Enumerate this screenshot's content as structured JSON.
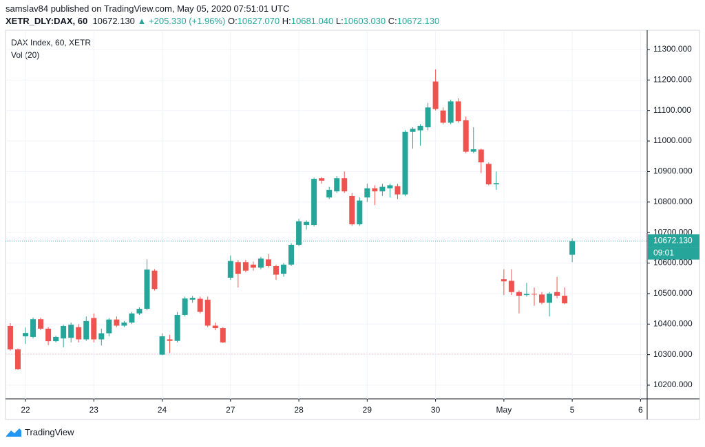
{
  "header": {
    "author_line": "samslav84 published on TradingView.com, May 05, 2020 07:51:01 UTC",
    "symbol": "XETR_DLY:DAX, 60",
    "last": "10672.130",
    "arrow": "▲",
    "change": "+205.330 (+1.96%)",
    "open_label": "O:",
    "open": "10627.070",
    "high_label": "H:",
    "high": "10681.040",
    "low_label": "L:",
    "low": "10603.030",
    "close_label": "C:",
    "close": "10672.130"
  },
  "chart_data": {
    "type": "candlestick",
    "legend": [
      "DAX Index, 60, XETR",
      "Vol (20)"
    ],
    "up_color": "#26a69a",
    "down_color": "#ef5350",
    "grid": true,
    "x": [
      -2,
      -1,
      0,
      1,
      2,
      3,
      4,
      5,
      6,
      7,
      8,
      9,
      10,
      11,
      12,
      13,
      14,
      15,
      16,
      17,
      18,
      19,
      20,
      21,
      22,
      23,
      24,
      25,
      26,
      27,
      28,
      29,
      30,
      31,
      32,
      33,
      34,
      35,
      36,
      37,
      38,
      39,
      40,
      41,
      42,
      43,
      44,
      45,
      46,
      47,
      48,
      49,
      50,
      51,
      52,
      53,
      54,
      55,
      56,
      57,
      58,
      59,
      60,
      61,
      62,
      63,
      64,
      65,
      66,
      67,
      68,
      69,
      70,
      71,
      72
    ],
    "open": [
      10394,
      10317,
      10360,
      10358,
      10416,
      10385,
      10344,
      10353,
      10355,
      10390,
      10350,
      10420,
      10350,
      10370,
      10415,
      10395,
      10405,
      10435,
      10450,
      10575,
      10300,
      10350,
      10345,
      10430,
      10480,
      10483,
      10480,
      10395,
      10387,
      10552,
      10603,
      10603,
      10595,
      10585,
      10612,
      10590,
      10565,
      10595,
      10660,
      10725,
      10725,
      10878,
      10815,
      10835,
      10878,
      10820,
      10727,
      10815,
      10845,
      10835,
      10845,
      10852,
      10825,
      11030,
      11035,
      11045,
      11195,
      11100,
      11060,
      11130,
      11068,
      10965,
      10972,
      10925,
      10858,
      10547,
      10542,
      10505,
      10495,
      10499,
      10497,
      10470,
      10505,
      10493,
      10627.07
    ],
    "high": [
      10403,
      10320,
      10389,
      10421,
      10421,
      10390,
      10362,
      10398,
      10405,
      10400,
      10425,
      10435,
      10385,
      10420,
      10425,
      10410,
      10440,
      10455,
      10612,
      10580,
      10370,
      10365,
      10440,
      10490,
      10492,
      10490,
      10490,
      10405,
      10390,
      10625,
      10610,
      10610,
      10605,
      10620,
      10630,
      10595,
      10600,
      10665,
      10745,
      10740,
      10880,
      10882,
      10850,
      10885,
      10900,
      10830,
      10815,
      10860,
      10855,
      10860,
      10860,
      10860,
      11035,
      11045,
      11055,
      11125,
      11235,
      11110,
      11135,
      11140,
      11080,
      11045,
      10975,
      10930,
      10900,
      10580,
      10580,
      10510,
      10535,
      10520,
      10505,
      10505,
      10555,
      10520,
      10681.04
    ],
    "low": [
      10313,
      10250,
      10335,
      10353,
      10380,
      10331,
      10340,
      10324,
      10340,
      10340,
      10345,
      10340,
      10330,
      10360,
      10390,
      10390,
      10400,
      10430,
      10445,
      10510,
      10298,
      10305,
      10340,
      10425,
      10470,
      10435,
      10390,
      10380,
      10338,
      10545,
      10520,
      10570,
      10575,
      10580,
      10585,
      10545,
      10555,
      10590,
      10655,
      10710,
      10720,
      10860,
      10810,
      10830,
      10830,
      10722,
      10722,
      10800,
      10790,
      10820,
      10815,
      10810,
      10820,
      10975,
      10985,
      11035,
      11100,
      11055,
      11055,
      11060,
      10960,
      10960,
      10895,
      10855,
      10840,
      10495,
      10495,
      10435,
      10490,
      10460,
      10465,
      10425,
      10485,
      10465,
      10603.03
    ],
    "close": [
      10317,
      10252,
      10371,
      10416,
      10385,
      10344,
      10358,
      10394,
      10398,
      10350,
      10410,
      10350,
      10370,
      10415,
      10395,
      10405,
      10435,
      10450,
      10579,
      10515,
      10360,
      10345,
      10430,
      10484,
      10486,
      10440,
      10395,
      10387,
      10340,
      10607,
      10565,
      10575,
      10585,
      10615,
      10590,
      10562,
      10595,
      10660,
      10737,
      10735,
      10876,
      10870,
      10840,
      10878,
      10835,
      10727,
      10805,
      10845,
      10835,
      10850,
      10855,
      10825,
      11030,
      11040,
      11050,
      11110,
      11105,
      11060,
      11130,
      11065,
      10965,
      10973,
      10930,
      10858,
      10862,
      10540,
      10505,
      10493,
      10499,
      10497,
      10470,
      10500,
      10493,
      10468,
      10672.13
    ],
    "xlim": [
      -2.63,
      81.87
    ],
    "ylim": [
      10155,
      11363
    ],
    "xticks": [
      {
        "value": 0,
        "label": "22"
      },
      {
        "value": 9,
        "label": "23"
      },
      {
        "value": 18,
        "label": "24"
      },
      {
        "value": 27,
        "label": "27"
      },
      {
        "value": 36,
        "label": "28"
      },
      {
        "value": 45,
        "label": "29"
      },
      {
        "value": 54,
        "label": "30"
      },
      {
        "value": 63,
        "label": "May"
      },
      {
        "value": 72,
        "label": "5"
      },
      {
        "value": 81,
        "label": "6"
      }
    ],
    "yticks": [
      {
        "value": 10200,
        "label": "10200.000"
      },
      {
        "value": 10300,
        "label": "10300.000"
      },
      {
        "value": 10400,
        "label": "10400.000"
      },
      {
        "value": 10500,
        "label": "10500.000"
      },
      {
        "value": 10600,
        "label": "10600.000"
      },
      {
        "value": 10700,
        "label": "10700.000"
      },
      {
        "value": 10800,
        "label": "10800.000"
      },
      {
        "value": 10900,
        "label": "10900.000"
      },
      {
        "value": 11000,
        "label": "11000.000"
      },
      {
        "value": 11100,
        "label": "11100.000"
      },
      {
        "value": 11200,
        "label": "11200.000"
      },
      {
        "value": 11300,
        "label": "11300.000"
      }
    ],
    "last_price": {
      "value": 10672.13,
      "label": "10672.130"
    },
    "countdown": "09:01"
  },
  "footer": {
    "brand": "TradingView"
  }
}
